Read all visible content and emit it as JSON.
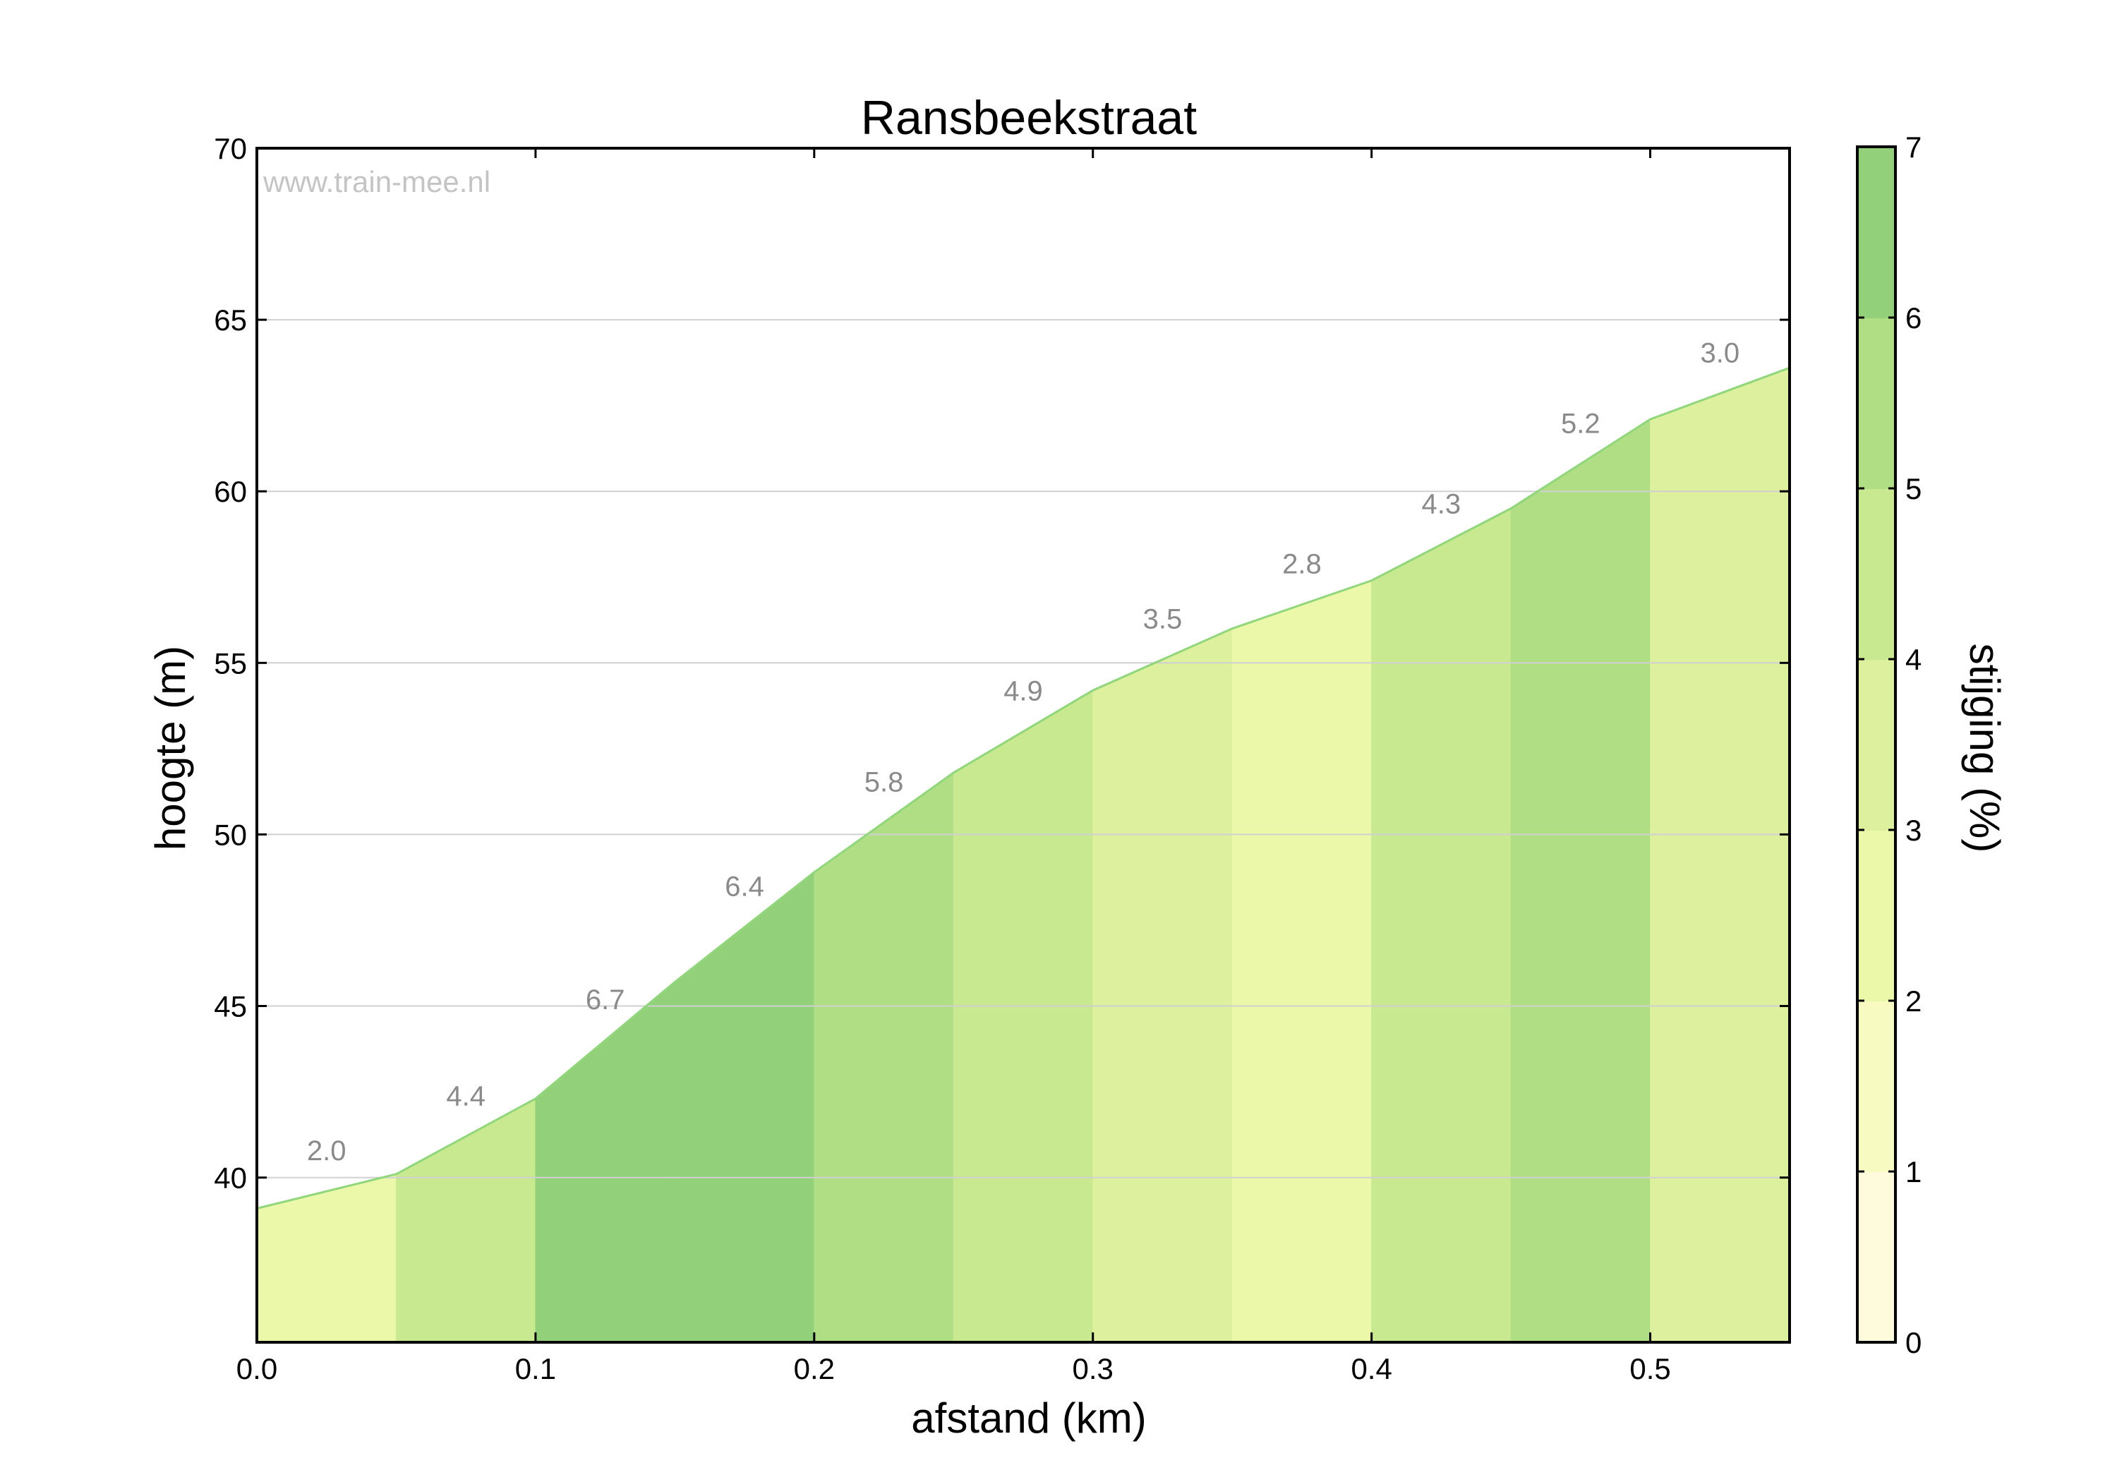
{
  "chart_data": {
    "type": "area",
    "title": "Ransbeekstraat",
    "xlabel": "afstand (km)",
    "ylabel": "hoogte (m)",
    "colorbar_label": "stijging (%)",
    "watermark": "www.train-mee.nl",
    "xlim": [
      0,
      0.55
    ],
    "ylim": [
      35.2,
      70
    ],
    "x_ticks": [
      "0.0",
      "0.1",
      "0.2",
      "0.3",
      "0.4",
      "0.5"
    ],
    "y_ticks": [
      "40",
      "45",
      "50",
      "55",
      "60",
      "65",
      "70"
    ],
    "colorbar_ticks": [
      "0",
      "1",
      "2",
      "3",
      "4",
      "5",
      "6",
      "7"
    ],
    "grid": "horizontal",
    "profile": {
      "x": [
        0.0,
        0.05,
        0.1,
        0.15,
        0.2,
        0.25,
        0.3,
        0.35,
        0.4,
        0.45,
        0.5,
        0.55
      ],
      "y": [
        39.1,
        40.1,
        42.3,
        45.7,
        48.9,
        51.8,
        54.2,
        56.0,
        57.4,
        59.5,
        62.1,
        63.6
      ]
    },
    "segments": [
      {
        "x0": 0.0,
        "x1": 0.05,
        "grade": 2.0,
        "label": "2.0"
      },
      {
        "x0": 0.05,
        "x1": 0.1,
        "grade": 4.4,
        "label": "4.4"
      },
      {
        "x0": 0.1,
        "x1": 0.15,
        "grade": 6.7,
        "label": "6.7"
      },
      {
        "x0": 0.15,
        "x1": 0.2,
        "grade": 6.4,
        "label": "6.4"
      },
      {
        "x0": 0.2,
        "x1": 0.25,
        "grade": 5.8,
        "label": "5.8"
      },
      {
        "x0": 0.25,
        "x1": 0.3,
        "grade": 4.9,
        "label": "4.9"
      },
      {
        "x0": 0.3,
        "x1": 0.35,
        "grade": 3.5,
        "label": "3.5"
      },
      {
        "x0": 0.35,
        "x1": 0.4,
        "grade": 2.8,
        "label": "2.8"
      },
      {
        "x0": 0.4,
        "x1": 0.45,
        "grade": 4.3,
        "label": "4.3"
      },
      {
        "x0": 0.45,
        "x1": 0.5,
        "grade": 5.2,
        "label": "5.2"
      },
      {
        "x0": 0.5,
        "x1": 0.55,
        "grade": 3.0,
        "label": "3.0"
      }
    ],
    "colorbar_colors": [
      "#fefbdd",
      "#f8fbc1",
      "#ebf8aa",
      "#dcf09d",
      "#c8e990",
      "#b0de85",
      "#92d17a"
    ],
    "line_color": "#90d67a",
    "grid_color": "#d0d0d0"
  }
}
